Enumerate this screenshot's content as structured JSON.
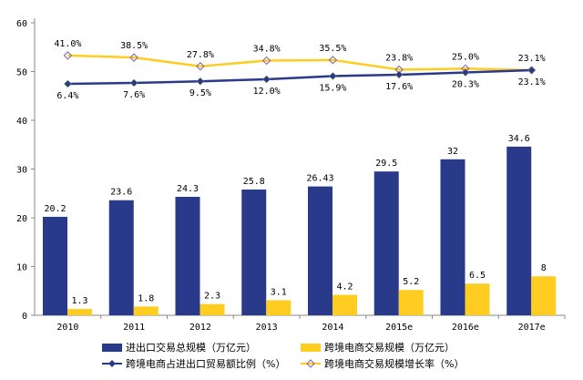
{
  "chart_data": {
    "type": "bar",
    "categories": [
      "2010",
      "2011",
      "2012",
      "2013",
      "2014",
      "2015e",
      "2016e",
      "2017e"
    ],
    "ylim": [
      0,
      60
    ],
    "yticks": [
      0,
      10,
      20,
      30,
      40,
      50,
      60
    ],
    "series": [
      {
        "name": "进出口交易总规模（万亿元）",
        "type": "bar",
        "color": "#2A3A8A",
        "values": [
          20.2,
          23.6,
          24.3,
          25.8,
          26.43,
          29.5,
          32,
          34.6
        ],
        "labels": [
          "20.2",
          "23.6",
          "24.3",
          "25.8",
          "26.43",
          "29.5",
          "32",
          "34.6"
        ]
      },
      {
        "name": "跨境电商交易规模（万亿元）",
        "type": "bar",
        "color": "#FFCC22",
        "values": [
          1.3,
          1.8,
          2.3,
          3.1,
          4.2,
          5.2,
          6.5,
          8
        ],
        "labels": [
          "1.3",
          "1.8",
          "2.3",
          "3.1",
          "4.2",
          "5.2",
          "6.5",
          "8"
        ]
      },
      {
        "name": "跨境电商占进出口贸易额比例（%）",
        "type": "line",
        "color": "#2A3A8A",
        "marker": "diamond-filled",
        "values": [
          6.4,
          7.6,
          9.5,
          12.0,
          15.9,
          17.6,
          20.3,
          23.1
        ],
        "labels": [
          "6.4%",
          "7.6%",
          "9.5%",
          "12.0%",
          "15.9%",
          "17.6%",
          "20.3%",
          "23.1%"
        ]
      },
      {
        "name": "跨境电商交易规模增长率（%）",
        "type": "line",
        "color": "#FFCC22",
        "marker": "diamond-open",
        "values": [
          41.0,
          38.5,
          27.8,
          34.8,
          35.5,
          23.8,
          25.0,
          23.1
        ],
        "labels": [
          "41.0%",
          "38.5%",
          "27.8%",
          "34.8%",
          "35.5%",
          "23.8%",
          "25.0%",
          "23.1%"
        ]
      }
    ]
  }
}
